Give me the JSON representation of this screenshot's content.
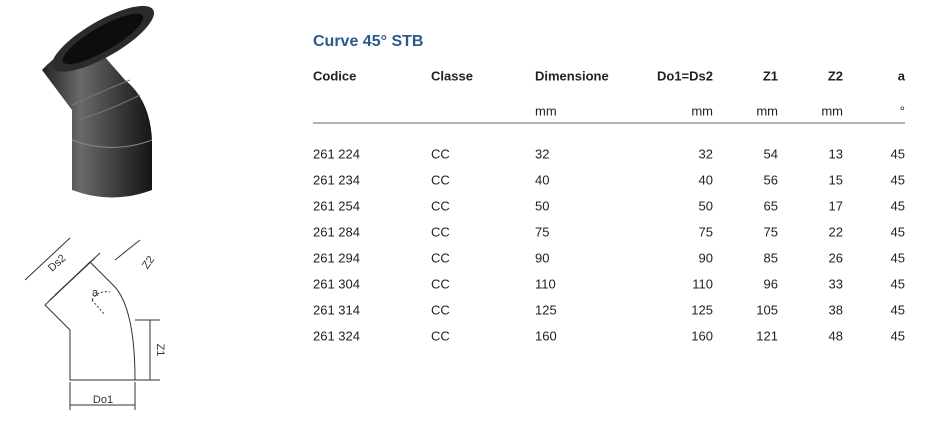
{
  "title": "Curve 45° STB",
  "drawing": {
    "labels": [
      "Ds2",
      "Z2",
      "a",
      "Z1",
      "Do1"
    ]
  },
  "table": {
    "headers": [
      "Codice",
      "Classe",
      "Dimensione",
      "Do1=Ds2",
      "Z1",
      "Z2",
      "a"
    ],
    "units": [
      "mm",
      "mm",
      "mm",
      "mm",
      "°"
    ],
    "rows": [
      [
        "261 224",
        "CC",
        32,
        32,
        54,
        13,
        45
      ],
      [
        "261 234",
        "CC",
        40,
        40,
        56,
        15,
        45
      ],
      [
        "261 254",
        "CC",
        50,
        50,
        65,
        17,
        45
      ],
      [
        "261 284",
        "CC",
        75,
        75,
        75,
        22,
        45
      ],
      [
        "261 294",
        "CC",
        90,
        90,
        85,
        26,
        45
      ],
      [
        "261 304",
        "CC",
        110,
        110,
        96,
        33,
        45
      ],
      [
        "261 314",
        "CC",
        125,
        125,
        105,
        38,
        45
      ],
      [
        "261 324",
        "CC",
        160,
        160,
        121,
        48,
        45
      ]
    ]
  }
}
